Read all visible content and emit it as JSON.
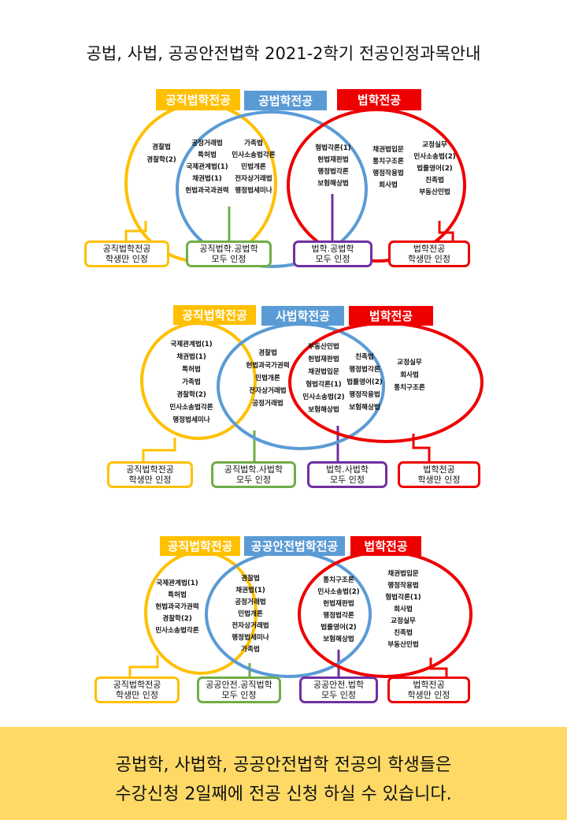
{
  "title": "공법, 사법, 공공안전법학 2021-2학기 전공인정과목안내",
  "colors": {
    "yellow": "#FFC000",
    "blue": "#5B9BD5",
    "red": "#EE0000",
    "green": "#70AD47",
    "purple": "#7030A0",
    "banner": "#FFD966"
  },
  "diagrams": [
    {
      "labels": [
        "공직법학전공",
        "공법학전공",
        "법학전공"
      ],
      "groups": [
        [
          "경찰법",
          "경찰학(2)"
        ],
        [
          "공정거래법",
          "특허법",
          "국제관계법(1)",
          "채권법(1)",
          "헌법과국과권력"
        ],
        [
          "가족법",
          "민사소송법각론",
          "민법개론",
          "전자상거래법",
          "행정법세미나"
        ],
        [
          "형법각론(1)",
          "헌법재판법",
          "행정법각론",
          "보험해상법"
        ],
        [
          "채권법입문",
          "통치구조론",
          "행정작용법",
          "회사법"
        ],
        [
          "교정실무",
          "민사소송법(2)",
          "법률영어(2)",
          "친족법",
          "부동산민법"
        ]
      ],
      "notes": [
        [
          "공직법학전공",
          "학생만 인정"
        ],
        [
          "공직법학.공법학",
          "모두 인정"
        ],
        [
          "법학.공법학",
          "모두 인정"
        ],
        [
          "법학전공",
          "학생만 인정"
        ]
      ]
    },
    {
      "labels": [
        "공직법학전공",
        "사법학전공",
        "법학전공"
      ],
      "groups": [
        [
          "국제관계법(1)",
          "채권법(1)",
          "특허법",
          "가족법",
          "경찰학(2)",
          "민사소송법각론",
          "행정법세미나"
        ],
        [
          "경찰법",
          "헌법과국가권력",
          "민법개론",
          "전자상거래법",
          "공정거래법"
        ],
        [
          "부동산민법",
          "헌법재판법",
          "채권법입문",
          "형법각론(1)",
          "민사소송법(2)",
          "보험해상법"
        ],
        [
          "친족법",
          "행정법각론",
          "법률영어(2)",
          "행정작용법",
          "보험해상법"
        ],
        [
          "교정실무",
          "회사법",
          "통치구조론"
        ]
      ],
      "notes": [
        [
          "공직법학전공",
          "학생만 인정"
        ],
        [
          "공직법학.사법학",
          "모두 인정"
        ],
        [
          "법학.사법학",
          "모두 인정"
        ],
        [
          "법학전공",
          "학생만 인정"
        ]
      ]
    },
    {
      "labels": [
        "공직법학전공",
        "공공안전법학전공",
        "법학전공"
      ],
      "groups": [
        [
          "국제관계법(1)",
          "특허법",
          "헌법과국가권력",
          "경찰학(2)",
          "민사소송법각론"
        ],
        [
          "경찰법",
          "채권법(1)",
          "공정거래법",
          "민법개론",
          "전자상거래법",
          "행정법세미나",
          "가족법"
        ],
        [
          "통치구조론",
          "민사소송법(2)",
          "헌법재판법",
          "행정법각론",
          "법률영어(2)",
          "보험해상법"
        ],
        [
          "채권법입문",
          "행정작용법",
          "형법각론(1)",
          "회사법",
          "교정실무",
          "친족법",
          "부동산민법"
        ]
      ],
      "notes": [
        [
          "공직법학전공",
          "학생만 인정"
        ],
        [
          "공공안전.공직법학",
          "모두 인정"
        ],
        [
          "공공안전.법학",
          "모두 인정"
        ],
        [
          "법학전공",
          "학생만 인정"
        ]
      ]
    }
  ],
  "banner": {
    "line1": "공법학, 사법학, 공공안전법학 전공의 학생들은",
    "line2": "수강신청 2일째에 전공 신청 하실 수 있습니다."
  }
}
